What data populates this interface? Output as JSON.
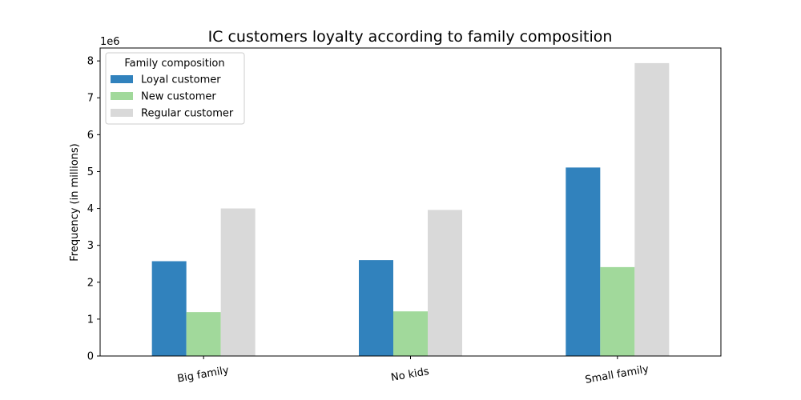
{
  "chart_data": {
    "type": "bar",
    "title": "IC customers loyalty according to family composition",
    "xlabel": "",
    "ylabel": "Frequency (in millions)",
    "y_offset_label": "1e6",
    "categories": [
      "Big family",
      "No kids",
      "Small family"
    ],
    "series": [
      {
        "name": "Loyal customer",
        "color": "#3182bd",
        "values": [
          2.57,
          2.6,
          5.11
        ]
      },
      {
        "name": "New customer",
        "color": "#a1d99b",
        "values": [
          1.19,
          1.21,
          2.41
        ]
      },
      {
        "name": "Regular customer",
        "color": "#d9d9d9",
        "values": [
          4.0,
          3.96,
          7.94
        ]
      }
    ],
    "ylim": [
      0,
      8.35
    ],
    "yticks": [
      0,
      1,
      2,
      3,
      4,
      5,
      6,
      7,
      8
    ],
    "legend_title": "Family composition",
    "legend_position": "top-left",
    "grid": false
  }
}
